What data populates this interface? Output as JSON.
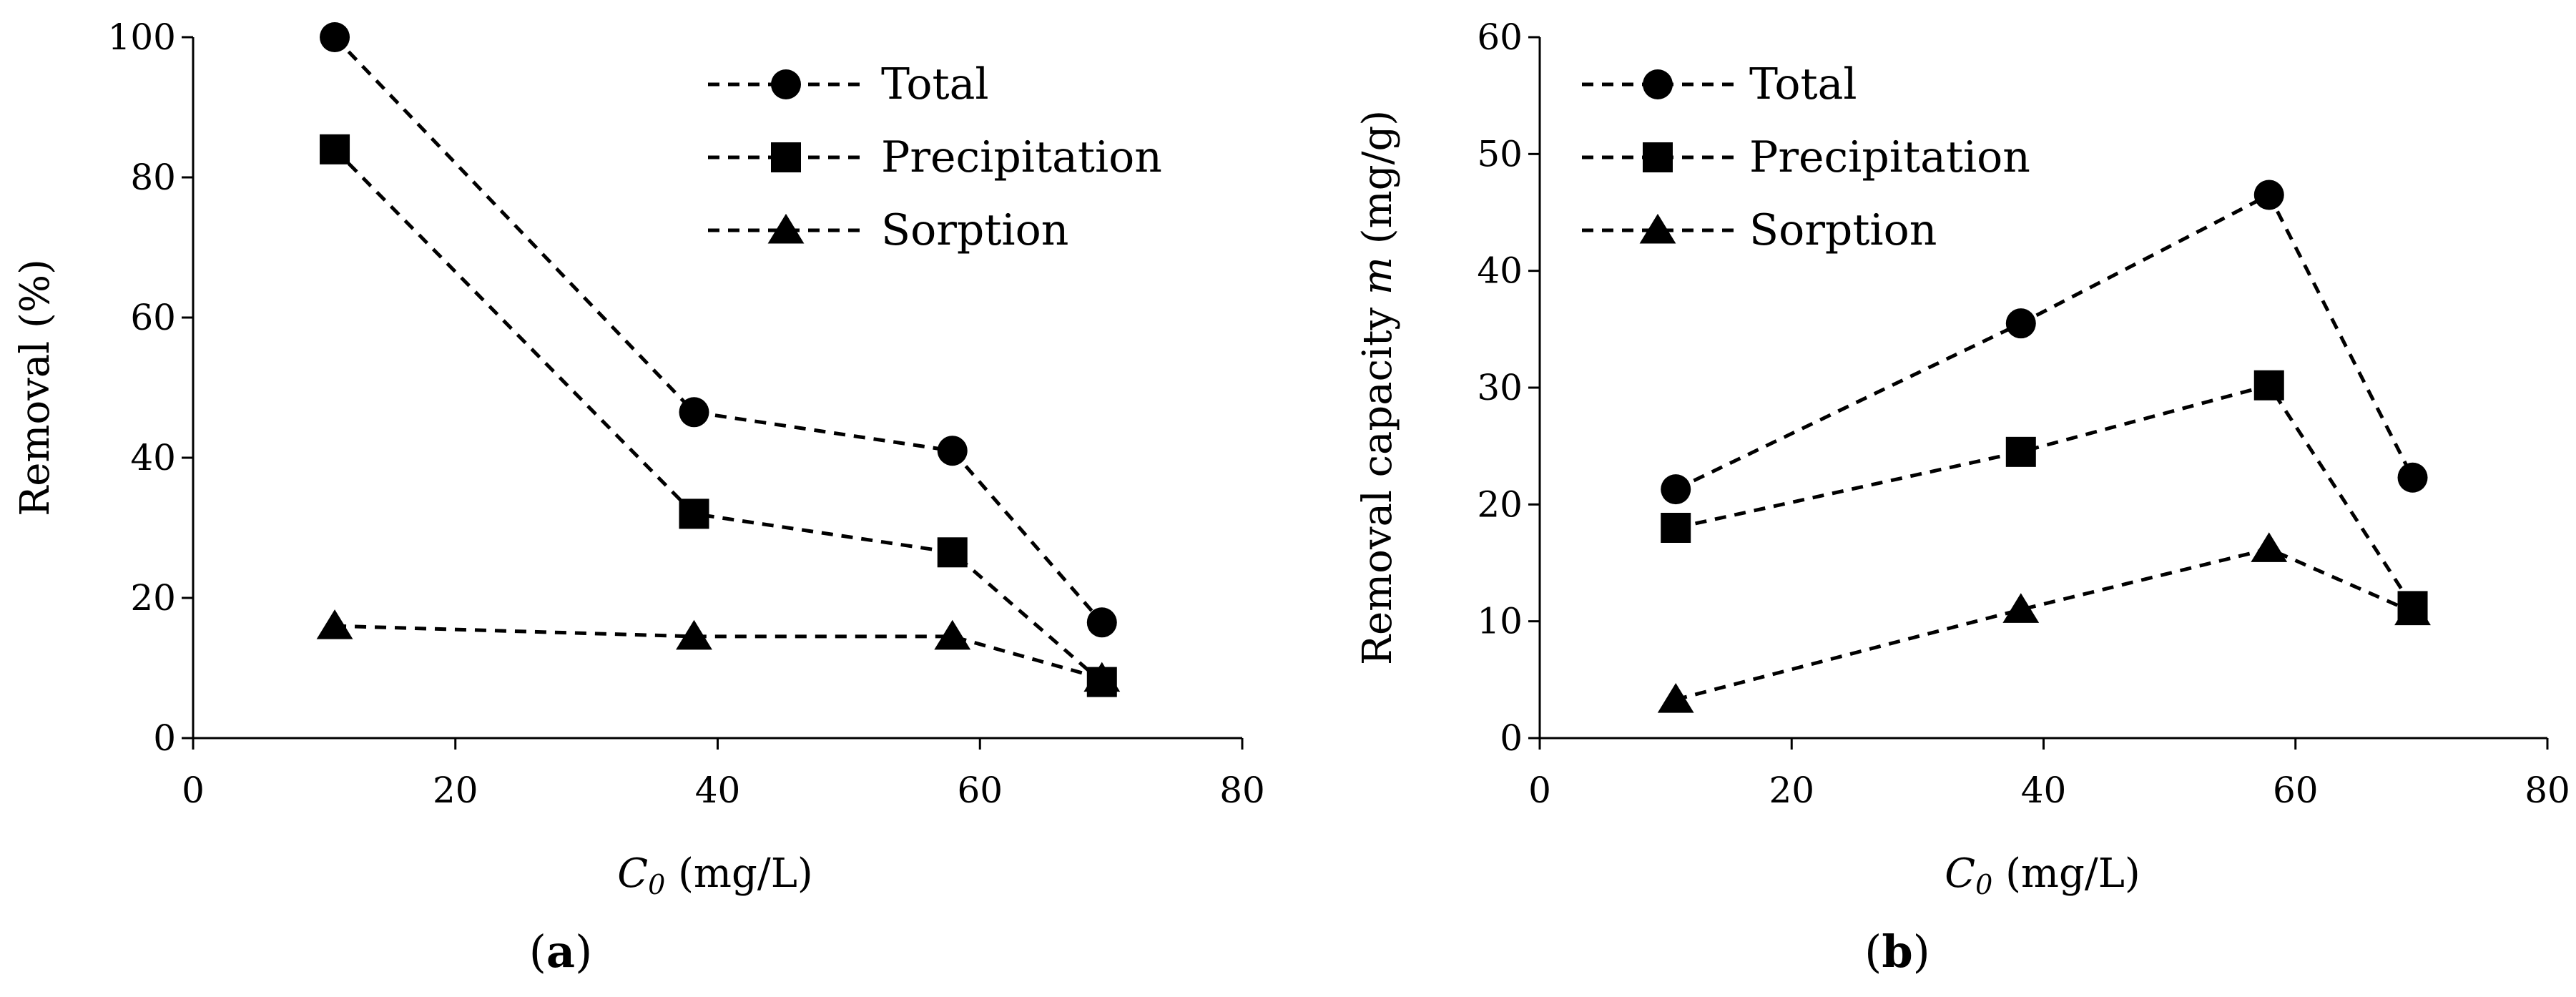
{
  "chart_data": [
    {
      "panel": "a",
      "type": "line",
      "marker_style": "dashed line with markers",
      "x": [
        10.8,
        38.2,
        57.9,
        69.3
      ],
      "xlim": [
        0,
        80
      ],
      "xticks": [
        0,
        20,
        40,
        60,
        80
      ],
      "ylim": [
        0,
        100
      ],
      "yticks": [
        0,
        20,
        40,
        60,
        80,
        100
      ],
      "ylabel": "Removal (%)",
      "xlabel_symbol": "C",
      "xlabel_sub": "0",
      "xlabel_unit": " (mg/L)",
      "caption_open": "(",
      "caption_letter": "a",
      "caption_close": ")",
      "legend_position": "top-right",
      "series": [
        {
          "name": "Total",
          "marker": "circle",
          "values": [
            100,
            46.5,
            41,
            16.5
          ]
        },
        {
          "name": "Precipitation",
          "marker": "square",
          "values": [
            84,
            32,
            26.5,
            8
          ]
        },
        {
          "name": "Sorption",
          "marker": "triangle",
          "values": [
            16,
            14.5,
            14.5,
            8.5
          ]
        }
      ]
    },
    {
      "panel": "b",
      "type": "line",
      "marker_style": "dashed line with markers",
      "x": [
        10.8,
        38.2,
        57.9,
        69.3
      ],
      "xlim": [
        0,
        80
      ],
      "xticks": [
        0,
        20,
        40,
        60,
        80
      ],
      "ylim": [
        0,
        60
      ],
      "yticks": [
        0,
        10,
        20,
        30,
        40,
        50,
        60
      ],
      "ylabel_main": "Removal capacity ",
      "ylabel_italic": "m",
      "ylabel_unit": " (mg/g)",
      "xlabel_symbol": "C",
      "xlabel_sub": "0",
      "xlabel_unit": " (mg/L)",
      "caption_open": "(",
      "caption_letter": "b",
      "caption_close": ")",
      "legend_position": "top-left",
      "series": [
        {
          "name": "Total",
          "marker": "circle",
          "values": [
            21.3,
            35.5,
            46.5,
            22.3
          ]
        },
        {
          "name": "Precipitation",
          "marker": "square",
          "values": [
            18,
            24.5,
            30.2,
            11.3
          ]
        },
        {
          "name": "Sorption",
          "marker": "triangle",
          "values": [
            3.3,
            11,
            16.2,
            10.8
          ]
        }
      ]
    }
  ]
}
